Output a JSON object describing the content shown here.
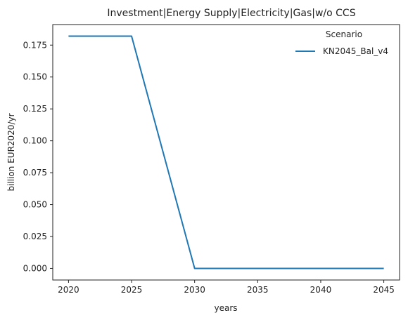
{
  "chart_data": {
    "type": "line",
    "title": "Investment|Energy Supply|Electricity|Gas|w/o CCS",
    "xlabel": "years",
    "ylabel": "billion EUR2020/yr",
    "x": [
      2020,
      2025,
      2030,
      2035,
      2040,
      2045
    ],
    "xticks": [
      "2020",
      "2025",
      "2030",
      "2035",
      "2040",
      "2045"
    ],
    "yticks": [
      "0.000",
      "0.025",
      "0.050",
      "0.075",
      "0.100",
      "0.125",
      "0.150",
      "0.175"
    ],
    "xlim": [
      2018.75,
      2046.25
    ],
    "ylim": [
      -0.0091,
      0.1911
    ],
    "grid": false,
    "legend": {
      "title": "Scenario",
      "placement": "top-right"
    },
    "series": [
      {
        "name": "KN2045_Bal_v4",
        "color": "#1f77b4",
        "values": [
          0.182,
          0.182,
          0.0,
          0.0,
          0.0,
          0.0
        ]
      }
    ]
  }
}
